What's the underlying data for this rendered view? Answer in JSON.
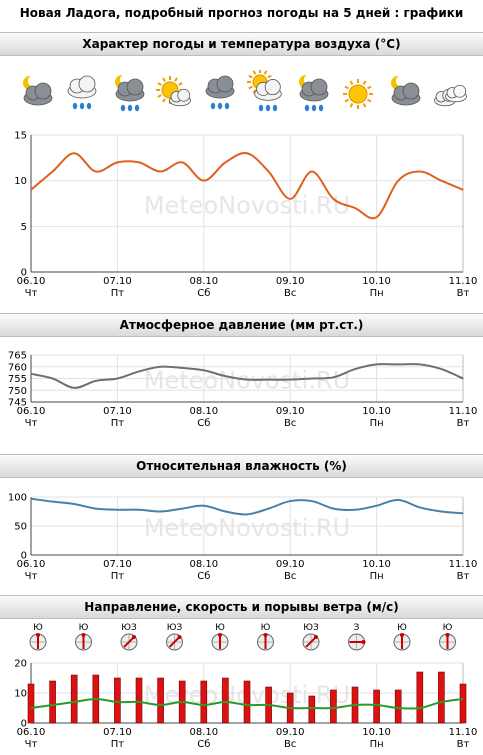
{
  "page_title": "Новая Ладога, подробный прогноз погоды на 5 дней : графики",
  "watermark": "MeteoNovosti.RU",
  "x_dates": [
    "06.10",
    "07.10",
    "08.10",
    "09.10",
    "10.10",
    "11.10"
  ],
  "x_days": [
    "Чт",
    "Пт",
    "Сб",
    "Вс",
    "Пн",
    "Вт"
  ],
  "weather_icons": [
    "partly-cloudy-night-icon",
    "rain-cloud-icon",
    "cloud-rain-night-icon",
    "partly-sunny-icon",
    "cloud-rain-icon",
    "sun-cloud-rain-icon",
    "cloud-rain-night-icon",
    "sun-icon",
    "cloudy-night-icon",
    "clouds-icon"
  ],
  "colors": {
    "temperature": "#e06020",
    "pressure": "#707070",
    "humidity": "#4a7fa6",
    "wind_bar": "#dd1111",
    "gust_line": "#2a9a2a"
  },
  "chart_data": [
    {
      "type": "line",
      "title": "Характер погоды и температура воздуха (°C)",
      "ylim": [
        0,
        15
      ],
      "yticks": [
        0,
        5,
        10,
        15
      ],
      "x": [
        0,
        0.25,
        0.5,
        0.75,
        1,
        1.25,
        1.5,
        1.75,
        2,
        2.25,
        2.5,
        2.75,
        3,
        3.25,
        3.5,
        3.75,
        4,
        4.25,
        4.5,
        4.75,
        5
      ],
      "series": [
        {
          "values": [
            9,
            11,
            13,
            11,
            12,
            12,
            11,
            12,
            10,
            12,
            13,
            11,
            8,
            11,
            8,
            7,
            6,
            10,
            11,
            10,
            9
          ]
        }
      ]
    },
    {
      "type": "line",
      "title": "Атмосферное давление (мм рт.ст.)",
      "ylim": [
        745,
        765
      ],
      "yticks": [
        745,
        750,
        755,
        760,
        765
      ],
      "x": [
        0,
        0.25,
        0.5,
        0.75,
        1,
        1.25,
        1.5,
        1.75,
        2,
        2.25,
        2.5,
        2.75,
        3,
        3.25,
        3.5,
        3.75,
        4,
        4.25,
        4.5,
        4.75,
        5
      ],
      "series": [
        {
          "values": [
            757,
            755,
            751,
            754,
            755,
            758,
            760,
            759.5,
            758.5,
            756,
            754.5,
            754.5,
            754.5,
            755,
            755.5,
            759,
            761,
            761,
            761,
            759,
            755
          ]
        }
      ]
    },
    {
      "type": "line",
      "title": "Относительная влажность (%)",
      "ylim": [
        0,
        100
      ],
      "yticks": [
        0,
        50,
        100
      ],
      "x": [
        0,
        0.25,
        0.5,
        0.75,
        1,
        1.25,
        1.5,
        1.75,
        2,
        2.25,
        2.5,
        2.75,
        3,
        3.25,
        3.5,
        3.75,
        4,
        4.25,
        4.5,
        4.75,
        5
      ],
      "series": [
        {
          "values": [
            97,
            92,
            88,
            80,
            78,
            78,
            75,
            80,
            85,
            75,
            70,
            80,
            93,
            93,
            80,
            78,
            85,
            95,
            82,
            75,
            72
          ]
        }
      ]
    },
    {
      "type": "bar",
      "title": "Направление, скорость и порывы ветра (м/с)",
      "ylim": [
        0,
        20
      ],
      "yticks": [
        0,
        10,
        20
      ],
      "x": [
        0,
        0.25,
        0.5,
        0.75,
        1,
        1.25,
        1.5,
        1.75,
        2,
        2.25,
        2.5,
        2.75,
        3,
        3.25,
        3.5,
        3.75,
        4,
        4.25,
        4.5,
        4.75,
        5
      ],
      "wind_directions": [
        "Ю",
        "Ю",
        "ЮЗ",
        "ЮЗ",
        "Ю",
        "Ю",
        "ЮЗ",
        "З",
        "Ю",
        "Ю"
      ],
      "series": [
        {
          "values": [
            13,
            14,
            16,
            16,
            15,
            15,
            15,
            14,
            14,
            15,
            14,
            12,
            10,
            9,
            11,
            12,
            11,
            11,
            17,
            17,
            13
          ]
        },
        {
          "values": [
            5,
            6,
            7,
            8,
            7,
            7,
            6,
            7,
            6,
            7,
            6,
            6,
            5,
            5,
            5,
            6,
            6,
            5,
            5,
            7,
            8
          ]
        }
      ]
    }
  ]
}
